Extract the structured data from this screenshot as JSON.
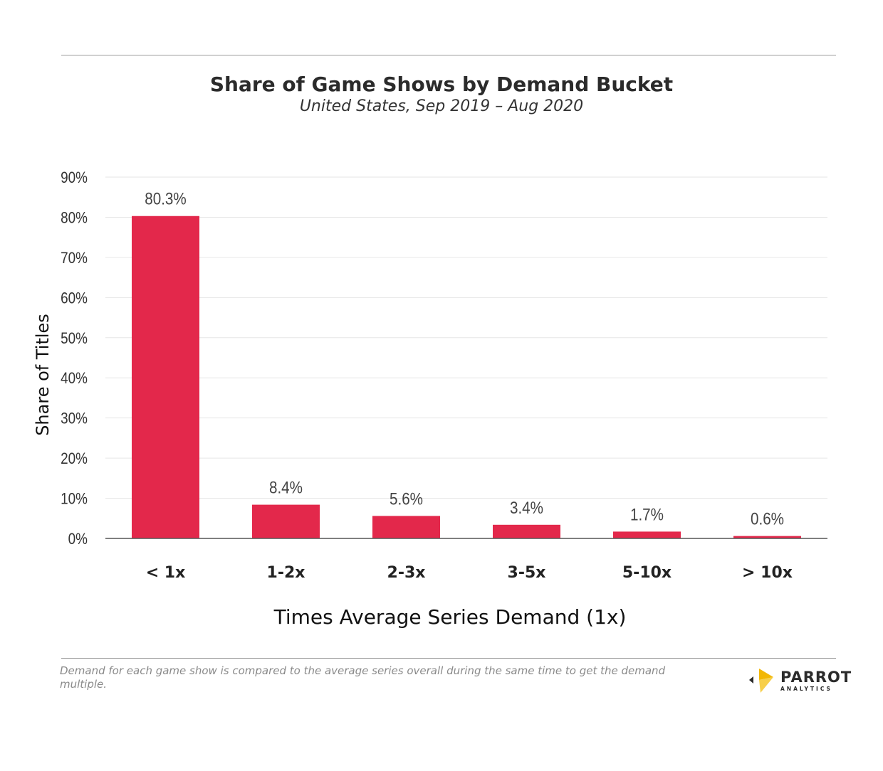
{
  "title": "Share of Game Shows by Demand Bucket",
  "subtitle": "United States,  Sep 2019 – Aug 2020",
  "footnote": "Demand for each game show is compared to the average series overall during the same time to get the demand multiple.",
  "logo": {
    "word": "PARROT",
    "sub": "ANALYTICS",
    "icon": "parrot-analytics-logo-icon"
  },
  "colors": {
    "bar": "#e3284b",
    "grid": "#e6e6e6",
    "axis": "#555555",
    "logo_yellow": "#f2b705"
  },
  "chart_data": {
    "type": "bar",
    "categories": [
      "< 1x",
      "1-2x",
      "2-3x",
      "3-5x",
      "5-10x",
      "> 10x"
    ],
    "values": [
      80.3,
      8.4,
      5.6,
      3.4,
      1.7,
      0.6
    ],
    "data_labels": [
      "80.3%",
      "8.4%",
      "5.6%",
      "3.4%",
      "1.7%",
      "0.6%"
    ],
    "title": "Share of Game Shows by Demand Bucket",
    "xlabel": "Times Average Series Demand (1x)",
    "ylabel": "Share of Titles",
    "ylim": [
      0,
      90
    ],
    "yticks": [
      0,
      10,
      20,
      30,
      40,
      50,
      60,
      70,
      80,
      90
    ],
    "ytick_labels": [
      "0%",
      "10%",
      "20%",
      "30%",
      "40%",
      "50%",
      "60%",
      "70%",
      "80%",
      "90%"
    ],
    "grid": true,
    "legend": "none"
  }
}
